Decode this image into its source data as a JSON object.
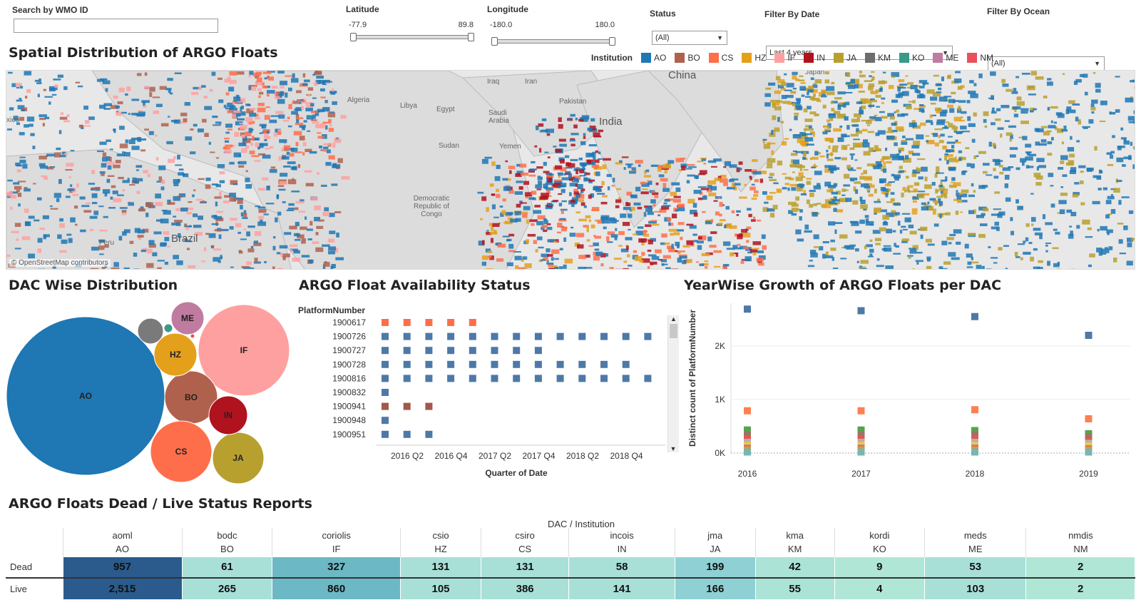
{
  "filters": {
    "wmo": {
      "label": "Search by WMO ID",
      "value": ""
    },
    "latitude": {
      "label": "Latitude",
      "min": "-77.9",
      "max": "89.8"
    },
    "longitude": {
      "label": "Longitude",
      "min": "-180.0",
      "max": "180.0"
    },
    "status": {
      "label": "Status",
      "value": "(All)"
    },
    "date": {
      "label": "Filter By Date",
      "value": "Last 4 years"
    },
    "ocean": {
      "label": "Filter By Ocean",
      "value": "(All)"
    }
  },
  "map": {
    "title": "Spatial Distribution of ARGO Floats",
    "legend_title": "Institution",
    "legend": [
      {
        "code": "AO",
        "color": "#1f77b4"
      },
      {
        "code": "BO",
        "color": "#b0614d"
      },
      {
        "code": "CS",
        "color": "#ff6e4a"
      },
      {
        "code": "HZ",
        "color": "#e5a01b"
      },
      {
        "code": "IF",
        "color": "#ffa0a0"
      },
      {
        "code": "IN",
        "color": "#b0121e"
      },
      {
        "code": "JA",
        "color": "#b8a02f"
      },
      {
        "code": "KM",
        "color": "#6d6d6d"
      },
      {
        "code": "KO",
        "color": "#3a9a8a"
      },
      {
        "code": "ME",
        "color": "#c07ba0"
      },
      {
        "code": "NM",
        "color": "#e8505b"
      }
    ],
    "places": {
      "algeria": "Algeria",
      "libya": "Libya",
      "egypt": "Egypt",
      "iraq": "Iraq",
      "iran": "Iran",
      "saudi": "Saudi Arabia",
      "pakistan": "Pakistan",
      "india": "India",
      "china": "China",
      "sudan": "Sudan",
      "yemen": "Yemen",
      "congo": "Democratic Republic of Congo",
      "brazil": "Brazil",
      "peru": "Peru",
      "mexico": "xico",
      "japan": "Japan"
    },
    "credit": "© OpenStreetMap contributors"
  },
  "dac": {
    "title": "DAC Wise Distribution",
    "bubbles": [
      {
        "label": "AO",
        "color": "#1f77b4"
      },
      {
        "label": "IF",
        "color": "#ffa0a0"
      },
      {
        "label": "BO",
        "color": "#b0614d"
      },
      {
        "label": "CS",
        "color": "#ff6e4a"
      },
      {
        "label": "JA",
        "color": "#b8a02f"
      },
      {
        "label": "IN",
        "color": "#b0121e"
      },
      {
        "label": "HZ",
        "color": "#e5a01b"
      },
      {
        "label": "ME",
        "color": "#c07ba0"
      },
      {
        "label": "",
        "color": "#7a7a7a"
      },
      {
        "label": "",
        "color": "#3a9a8a"
      },
      {
        "label": "",
        "color": "#e8505b"
      }
    ]
  },
  "availability": {
    "title": "ARGO Float Availability Status",
    "row_header": "PlatformNumber",
    "x_title": "Quarter of Date",
    "x_ticks": [
      "2016 Q2",
      "2016 Q4",
      "2017 Q2",
      "2017 Q4",
      "2018 Q2",
      "2018 Q4"
    ],
    "rows": [
      {
        "id": "1900617",
        "color": "#ff6e4a",
        "quarters": [
          1,
          2,
          3,
          4,
          5
        ]
      },
      {
        "id": "1900726",
        "color": "#4e79a7",
        "quarters": [
          1,
          2,
          3,
          4,
          5,
          6,
          7,
          8,
          9,
          10,
          11,
          12,
          13
        ]
      },
      {
        "id": "1900727",
        "color": "#4e79a7",
        "quarters": [
          1,
          2,
          3,
          4,
          5,
          6,
          7,
          8
        ]
      },
      {
        "id": "1900728",
        "color": "#4e79a7",
        "quarters": [
          1,
          2,
          3,
          4,
          5,
          6,
          7,
          8,
          9,
          10,
          11,
          12
        ]
      },
      {
        "id": "1900816",
        "color": "#4e79a7",
        "quarters": [
          1,
          2,
          3,
          4,
          5,
          6,
          7,
          8,
          9,
          10,
          11,
          12,
          13
        ]
      },
      {
        "id": "1900832",
        "color": "#4e79a7",
        "quarters": [
          1
        ]
      },
      {
        "id": "1900941",
        "color": "#a0594a",
        "quarters": [
          1,
          2,
          3
        ]
      },
      {
        "id": "1900948",
        "color": "#4e79a7",
        "quarters": [
          1
        ]
      },
      {
        "id": "1900951",
        "color": "#4e79a7",
        "quarters": [
          1,
          2,
          3
        ]
      }
    ]
  },
  "chart_data": {
    "type": "scatter",
    "title": "YearWise Growth of ARGO Floats per DAC",
    "ylabel": "Distinct count of PlatformNumber",
    "xlabel": "",
    "x": [
      "2016",
      "2017",
      "2018",
      "2019"
    ],
    "y_ticks": [
      "0K",
      "1K",
      "2K"
    ],
    "ylim": [
      0,
      2800
    ],
    "series": [
      {
        "color": "#4e79a7",
        "values": [
          2690,
          2660,
          2550,
          2200
        ]
      },
      {
        "color": "#ff7f50",
        "values": [
          790,
          790,
          810,
          640
        ]
      },
      {
        "color": "#59a14f",
        "values": [
          430,
          430,
          420,
          360
        ]
      },
      {
        "color": "#9c755f",
        "values": [
          330,
          330,
          330,
          300
        ]
      },
      {
        "color": "#e15759",
        "values": [
          260,
          260,
          260,
          220
        ]
      },
      {
        "color": "#bab0ac",
        "values": [
          200,
          200,
          200,
          180
        ]
      },
      {
        "color": "#edc948",
        "values": [
          140,
          140,
          140,
          130
        ]
      },
      {
        "color": "#b07aa1",
        "values": [
          90,
          90,
          90,
          80
        ]
      },
      {
        "color": "#f28e2b",
        "values": [
          60,
          60,
          60,
          60
        ]
      },
      {
        "color": "#76b7b2",
        "values": [
          20,
          20,
          20,
          20
        ]
      }
    ]
  },
  "status_table": {
    "title": "ARGO Floats Dead / Live Status Reports",
    "group_header": "DAC / Institution",
    "columns": [
      {
        "dac": "aoml",
        "inst": "AO",
        "dead": "957",
        "live": "2,515",
        "dead_color": "#2b5b8c",
        "live_color": "#2b5b8c"
      },
      {
        "dac": "bodc",
        "inst": "BO",
        "dead": "61",
        "live": "265",
        "dead_color": "#a8e0d8",
        "live_color": "#a8e0d8"
      },
      {
        "dac": "coriolis",
        "inst": "IF",
        "dead": "327",
        "live": "860",
        "dead_color": "#6db8c5",
        "live_color": "#6db8c5"
      },
      {
        "dac": "csio",
        "inst": "HZ",
        "dead": "131",
        "live": "105",
        "dead_color": "#a8e0d8",
        "live_color": "#a8e0d8"
      },
      {
        "dac": "csiro",
        "inst": "CS",
        "dead": "131",
        "live": "386",
        "dead_color": "#a8e0d8",
        "live_color": "#a8e0d8"
      },
      {
        "dac": "incois",
        "inst": "IN",
        "dead": "58",
        "live": "141",
        "dead_color": "#a8e0d8",
        "live_color": "#a8e0d8"
      },
      {
        "dac": "jma",
        "inst": "JA",
        "dead": "199",
        "live": "166",
        "dead_color": "#8fd0d4",
        "live_color": "#8fd0d4"
      },
      {
        "dac": "kma",
        "inst": "KM",
        "dead": "42",
        "live": "55",
        "dead_color": "#abe3d6",
        "live_color": "#abe3d6"
      },
      {
        "dac": "kordi",
        "inst": "KO",
        "dead": "9",
        "live": "4",
        "dead_color": "#b0e6d6",
        "live_color": "#b0e6d6"
      },
      {
        "dac": "meds",
        "inst": "ME",
        "dead": "53",
        "live": "103",
        "dead_color": "#a8e0d8",
        "live_color": "#a8e0d8"
      },
      {
        "dac": "nmdis",
        "inst": "NM",
        "dead": "2",
        "live": "2",
        "dead_color": "#b0e6d6",
        "live_color": "#b0e6d6"
      }
    ],
    "rows": {
      "dead": "Dead",
      "live": "Live"
    }
  }
}
